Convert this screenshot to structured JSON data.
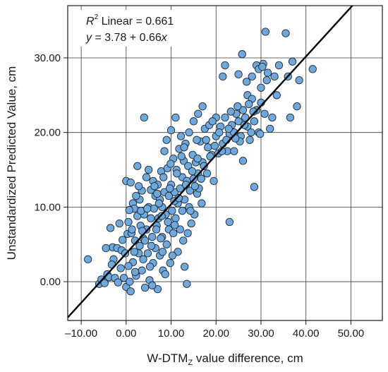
{
  "chart_data": {
    "type": "scatter",
    "xlabel": "W-DTM",
    "xlabel_subscript": "Z",
    "xlabel_suffix": " value difference, cm",
    "ylabel": "Unstandardized Predicted Value, cm",
    "xlim": [
      -13,
      57
    ],
    "ylim": [
      -5.2,
      37
    ],
    "xticks": [
      -10,
      0,
      10,
      20,
      30,
      40,
      50
    ],
    "xtick_labels": [
      "–10.00",
      "0.00",
      "10.00",
      "20.00",
      "30.00",
      "40.00",
      "50.00"
    ],
    "yticks": [
      0,
      10,
      20,
      30
    ],
    "ytick_labels": [
      "0.00",
      "10.00",
      "20.00",
      "30.00"
    ],
    "grid": true,
    "marker_color": "#6fa8dc",
    "marker_edge": "#1f2a36",
    "fit_line": {
      "intercept": 3.78,
      "slope": 0.66,
      "color": "#000000"
    },
    "annotations": {
      "r2_symbol": "R",
      "r2_exponent": "2",
      "r2_text": " Linear = 0.661",
      "eq_y": "y",
      "eq_mid": " = 3.78 + 0.66",
      "eq_x": "x"
    },
    "points": [
      [
        -8.5,
        3.0
      ],
      [
        -6.0,
        -0.3
      ],
      [
        -5.5,
        0.3
      ],
      [
        -4.8,
        -0.2
      ],
      [
        -4.2,
        1.0
      ],
      [
        -3.8,
        0.6
      ],
      [
        -3.0,
        4.6
      ],
      [
        -3.5,
        7.2
      ],
      [
        -2.8,
        3.0
      ],
      [
        -2.0,
        4.5
      ],
      [
        -1.5,
        7.8
      ],
      [
        -1.0,
        4.2
      ],
      [
        -0.5,
        0.5
      ],
      [
        -0.2,
        3.8
      ],
      [
        0.0,
        13.5
      ],
      [
        0.0,
        -0.7
      ],
      [
        0.3,
        6.4
      ],
      [
        0.5,
        8.0
      ],
      [
        0.8,
        0.0
      ],
      [
        1.0,
        13.3
      ],
      [
        1.0,
        -1.3
      ],
      [
        1.2,
        6.5
      ],
      [
        1.5,
        10.5
      ],
      [
        1.5,
        2.6
      ],
      [
        1.8,
        9.8
      ],
      [
        2.0,
        5.5
      ],
      [
        2.2,
        0.8
      ],
      [
        2.5,
        8.8
      ],
      [
        2.5,
        15.5
      ],
      [
        2.8,
        3.8
      ],
      [
        3.0,
        11.0
      ],
      [
        3.0,
        4.8
      ],
      [
        3.2,
        7.5
      ],
      [
        3.5,
        1.5
      ],
      [
        3.5,
        12.2
      ],
      [
        3.8,
        5.8
      ],
      [
        4.0,
        22.0
      ],
      [
        4.0,
        9.0
      ],
      [
        4.2,
        -0.8
      ],
      [
        4.5,
        7.0
      ],
      [
        4.5,
        14.0
      ],
      [
        4.8,
        3.8
      ],
      [
        5.0,
        10.0
      ],
      [
        5.0,
        15.0
      ],
      [
        5.2,
        0.2
      ],
      [
        5.5,
        8.5
      ],
      [
        5.5,
        12.3
      ],
      [
        5.8,
        6.0
      ],
      [
        6.0,
        13.5
      ],
      [
        6.0,
        2.5
      ],
      [
        6.2,
        9.8
      ],
      [
        6.5,
        11.5
      ],
      [
        6.5,
        4.5
      ],
      [
        6.8,
        7.5
      ],
      [
        7.0,
        13.0
      ],
      [
        7.0,
        -1.0
      ],
      [
        7.2,
        8.5
      ],
      [
        7.5,
        11.0
      ],
      [
        7.5,
        3.5
      ],
      [
        7.8,
        14.8
      ],
      [
        8.0,
        10.0
      ],
      [
        8.0,
        6.0
      ],
      [
        8.2,
        1.5
      ],
      [
        8.5,
        17.5
      ],
      [
        8.5,
        12.0
      ],
      [
        8.8,
        9.0
      ],
      [
        9.0,
        19.0
      ],
      [
        9.0,
        5.0
      ],
      [
        9.2,
        15.2
      ],
      [
        9.5,
        11.5
      ],
      [
        9.5,
        7.0
      ],
      [
        9.8,
        2.5
      ],
      [
        10.0,
        20.3
      ],
      [
        10.0,
        13.0
      ],
      [
        10.2,
        9.5
      ],
      [
        10.5,
        16.5
      ],
      [
        10.5,
        6.5
      ],
      [
        10.8,
        12.0
      ],
      [
        11.0,
        22.0
      ],
      [
        11.0,
        8.5
      ],
      [
        11.2,
        15.0
      ],
      [
        11.5,
        10.5
      ],
      [
        11.5,
        4.0
      ],
      [
        11.8,
        17.8
      ],
      [
        12.0,
        12.5
      ],
      [
        12.0,
        7.0
      ],
      [
        12.2,
        19.5
      ],
      [
        12.5,
        14.0
      ],
      [
        12.5,
        9.5
      ],
      [
        12.8,
        16.2
      ],
      [
        13.0,
        11.0
      ],
      [
        13.0,
        2.0
      ],
      [
        13.2,
        18.5
      ],
      [
        13.5,
        13.5
      ],
      [
        13.5,
        -0.3
      ],
      [
        13.8,
        15.5
      ],
      [
        14.0,
        10.0
      ],
      [
        14.0,
        20.0
      ],
      [
        14.2,
        12.2
      ],
      [
        14.5,
        7.8
      ],
      [
        14.8,
        17.0
      ],
      [
        15.0,
        13.8
      ],
      [
        15.0,
        21.5
      ],
      [
        15.2,
        9.0
      ],
      [
        15.5,
        16.0
      ],
      [
        15.8,
        11.8
      ],
      [
        16.0,
        22.5
      ],
      [
        16.0,
        14.5
      ],
      [
        16.5,
        18.8
      ],
      [
        16.8,
        10.5
      ],
      [
        17.0,
        23.5
      ],
      [
        17.0,
        16.0
      ],
      [
        17.5,
        20.5
      ],
      [
        17.8,
        19.0
      ],
      [
        18.0,
        14.5
      ],
      [
        18.5,
        21.0
      ],
      [
        19.0,
        17.0
      ],
      [
        19.5,
        13.5
      ],
      [
        20.0,
        22.0
      ],
      [
        20.0,
        19.5
      ],
      [
        20.5,
        17.2
      ],
      [
        21.0,
        20.8
      ],
      [
        21.5,
        27.5
      ],
      [
        21.5,
        18.5
      ],
      [
        22.0,
        29.0
      ],
      [
        22.0,
        22.0
      ],
      [
        22.5,
        17.5
      ],
      [
        23.0,
        8.0
      ],
      [
        23.0,
        19.8
      ],
      [
        23.5,
        21.0
      ],
      [
        24.0,
        20.0
      ],
      [
        24.0,
        17.5
      ],
      [
        24.5,
        22.5
      ],
      [
        25.0,
        21.5
      ],
      [
        25.0,
        27.8
      ],
      [
        25.5,
        19.5
      ],
      [
        25.8,
        30.5
      ],
      [
        26.0,
        23.0
      ],
      [
        26.0,
        16.2
      ],
      [
        26.5,
        22.0
      ],
      [
        27.0,
        25.0
      ],
      [
        27.0,
        20.8
      ],
      [
        27.5,
        19.0
      ],
      [
        28.0,
        27.5
      ],
      [
        28.0,
        24.5
      ],
      [
        28.5,
        12.7
      ],
      [
        28.5,
        21.5
      ],
      [
        29.0,
        29.0
      ],
      [
        29.0,
        23.0
      ],
      [
        29.5,
        28.5
      ],
      [
        29.5,
        20.0
      ],
      [
        30.0,
        26.0
      ],
      [
        30.0,
        24.0
      ],
      [
        30.5,
        29.2
      ],
      [
        31.0,
        33.5
      ],
      [
        31.5,
        28.0
      ],
      [
        32.0,
        20.5
      ],
      [
        32.5,
        22.0
      ],
      [
        33.0,
        27.5
      ],
      [
        34.0,
        29.0
      ],
      [
        35.5,
        33.3
      ],
      [
        36.0,
        27.5
      ],
      [
        36.5,
        22.0
      ],
      [
        37.0,
        29.5
      ],
      [
        38.0,
        23.5
      ],
      [
        38.5,
        27.0
      ],
      [
        41.5,
        28.5
      ],
      [
        -2.5,
        0.5
      ],
      [
        -1.8,
        -0.1
      ],
      [
        -1.2,
        1.8
      ],
      [
        0.5,
        2.1
      ],
      [
        1.8,
        4.0
      ],
      [
        2.2,
        11.5
      ],
      [
        3.8,
        3.0
      ],
      [
        5.8,
        -0.5
      ],
      [
        6.3,
        12.8
      ],
      [
        7.3,
        10.5
      ],
      [
        8.7,
        1.0
      ],
      [
        9.7,
        12.5
      ],
      [
        10.3,
        3.5
      ],
      [
        11.3,
        14.5
      ],
      [
        12.7,
        5.5
      ],
      [
        14.3,
        9.5
      ],
      [
        15.7,
        19.0
      ],
      [
        16.2,
        12.5
      ],
      [
        18.2,
        18.0
      ],
      [
        19.2,
        21.5
      ],
      [
        22.8,
        20.5
      ],
      [
        24.8,
        23.5
      ],
      [
        26.8,
        26.8
      ],
      [
        27.8,
        20.0
      ],
      [
        30.8,
        22.5
      ],
      [
        33.5,
        25.0
      ],
      [
        2.8,
        12.8
      ],
      [
        4.2,
        5.5
      ],
      [
        6.7,
        7.0
      ],
      [
        8.3,
        14.0
      ],
      [
        9.3,
        8.0
      ],
      [
        10.7,
        10.8
      ],
      [
        12.3,
        16.8
      ],
      [
        13.3,
        13.0
      ],
      [
        15.3,
        12.8
      ],
      [
        17.3,
        15.5
      ],
      [
        21.3,
        17.5
      ],
      [
        23.3,
        22.8
      ],
      [
        25.3,
        18.8
      ],
      [
        28.3,
        22.8
      ],
      [
        29.8,
        19.8
      ],
      [
        31.3,
        27.0
      ],
      [
        0.7,
        9.6
      ],
      [
        3.3,
        9.5
      ],
      [
        5.3,
        2.0
      ],
      [
        7.7,
        5.8
      ],
      [
        10.8,
        7.6
      ],
      [
        13.7,
        6.5
      ],
      [
        16.7,
        13.8
      ],
      [
        19.7,
        18.2
      ],
      [
        24.3,
        19.2
      ],
      [
        26.3,
        21.0
      ],
      [
        1.3,
        7.0
      ],
      [
        4.7,
        9.8
      ],
      [
        6.9,
        11.8
      ],
      [
        8.1,
        4.0
      ],
      [
        9.9,
        15.8
      ],
      [
        11.7,
        11.2
      ],
      [
        12.9,
        18.0
      ],
      [
        14.7,
        14.8
      ],
      [
        15.9,
        16.5
      ],
      [
        18.7,
        16.8
      ],
      [
        20.7,
        20.0
      ],
      [
        22.3,
        19.0
      ],
      [
        27.3,
        23.8
      ],
      [
        30.3,
        28.8
      ],
      [
        -4.5,
        4.5
      ],
      [
        -3.2,
        2.3
      ],
      [
        -0.8,
        5.6
      ],
      [
        2.0,
        1.3
      ],
      [
        3.6,
        6.8
      ],
      [
        5.6,
        4.8
      ],
      [
        7.9,
        8.8
      ]
    ]
  }
}
